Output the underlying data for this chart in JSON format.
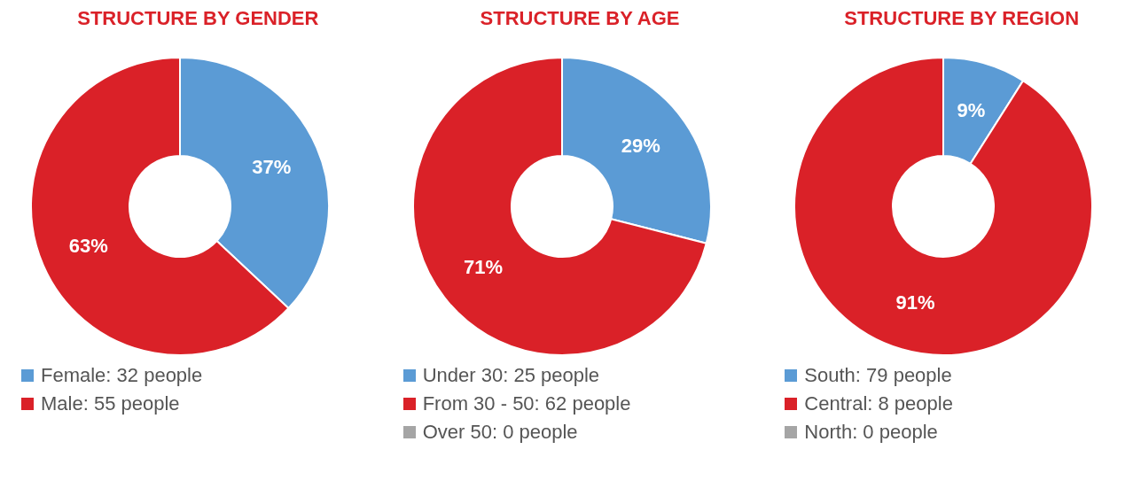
{
  "chart_data": [
    {
      "type": "donut",
      "title": "STRUCTURE BY GENDER",
      "categories": [
        "Female: 32 people",
        "Male: 55 people"
      ],
      "values": [
        37,
        63
      ],
      "colors": [
        "#5b9bd5",
        "#da2128"
      ],
      "value_labels": [
        "37%",
        "63%"
      ],
      "legend": "bottom"
    },
    {
      "type": "donut",
      "title": "STRUCTURE BY AGE",
      "categories": [
        "Under 30: 25 people",
        "From 30 - 50: 62 people",
        "Over 50: 0 people"
      ],
      "values": [
        29,
        71,
        0
      ],
      "colors": [
        "#5b9bd5",
        "#da2128",
        "#a5a5a5"
      ],
      "value_labels": [
        "29%",
        "71%",
        null
      ],
      "legend": "bottom"
    },
    {
      "type": "donut",
      "title": "STRUCTURE BY REGION",
      "categories": [
        "South: 79 people",
        "Central: 8 people",
        "North: 0 people"
      ],
      "values": [
        9,
        91,
        0
      ],
      "colors": [
        "#5b9bd5",
        "#da2128",
        "#a5a5a5"
      ],
      "value_labels": [
        "9%",
        "91%",
        null
      ],
      "legend": "bottom"
    }
  ]
}
